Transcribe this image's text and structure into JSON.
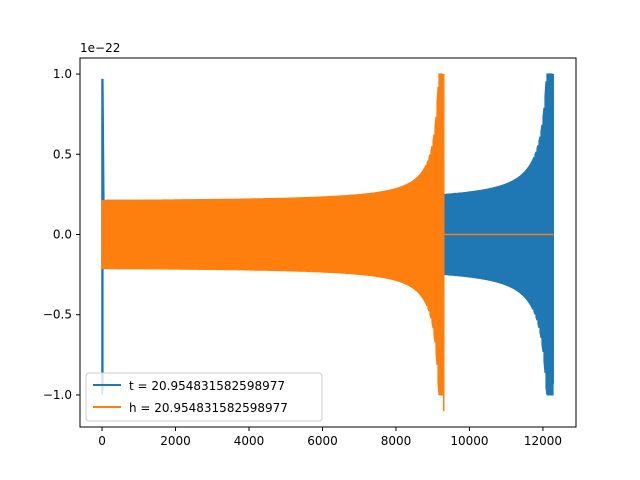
{
  "chart_data": {
    "type": "line",
    "offset_text": "1e−22",
    "xlim": [
      -600,
      12900
    ],
    "ylim": [
      -1.2,
      1.1
    ],
    "x_ticks": [
      0,
      2000,
      4000,
      6000,
      8000,
      10000,
      12000
    ],
    "x_tick_labels": [
      "0",
      "2000",
      "4000",
      "6000",
      "8000",
      "10000",
      "12000"
    ],
    "y_ticks": [
      -1.0,
      -0.5,
      0.0,
      0.5,
      1.0
    ],
    "y_tick_labels": [
      "−1.0",
      "−0.5",
      "0.0",
      "0.5",
      "1.0"
    ],
    "grid": false,
    "legend_position": "lower-left",
    "series": [
      {
        "name": "t = 20.954831582598977",
        "color": "#1f77b4",
        "x_start": 0,
        "x_end": 12280,
        "spike_start_amplitude": 0.97,
        "base_amplitude": 0.2,
        "peak_max": 1.0,
        "peak_min": -0.93,
        "trough_min": -1.0
      },
      {
        "name": "h = 20.954831582598977",
        "color": "#ff7f0e",
        "x_start": 0,
        "x_end": 9300,
        "base_amplitude": 0.2,
        "peak_max": 1.0,
        "peak_min": -1.1,
        "after_value": 0.0,
        "after_end": 12280
      }
    ]
  }
}
